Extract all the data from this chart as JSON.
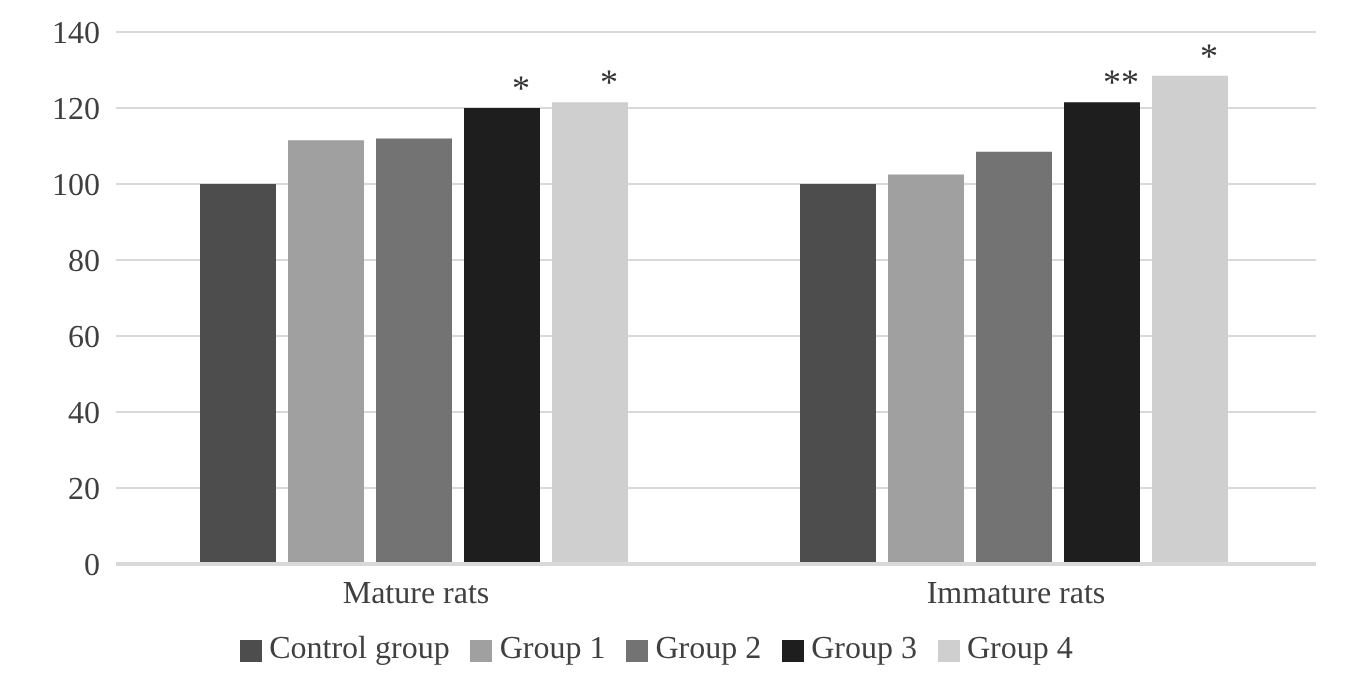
{
  "chart_data": {
    "type": "bar",
    "categories": [
      "Mature rats",
      "Immature rats"
    ],
    "series": [
      {
        "name": "Control group",
        "color": "#4d4d4d",
        "values": [
          100,
          100
        ]
      },
      {
        "name": "Group 1",
        "color": "#a0a0a0",
        "values": [
          111.5,
          102.5
        ]
      },
      {
        "name": "Group 2",
        "color": "#737373",
        "values": [
          112,
          108.5
        ]
      },
      {
        "name": "Group 3",
        "color": "#1e1e1e",
        "values": [
          120,
          121.5
        ],
        "value_labels": [
          "*",
          "**"
        ]
      },
      {
        "name": "Group 4",
        "color": "#cfcfcf",
        "values": [
          121.5,
          128.5
        ],
        "value_labels": [
          "*",
          "*"
        ]
      }
    ],
    "ylim": [
      0,
      140
    ],
    "yticks": [
      0,
      20,
      40,
      60,
      80,
      100,
      120,
      140
    ],
    "grid": "y",
    "legend": "bottom"
  }
}
